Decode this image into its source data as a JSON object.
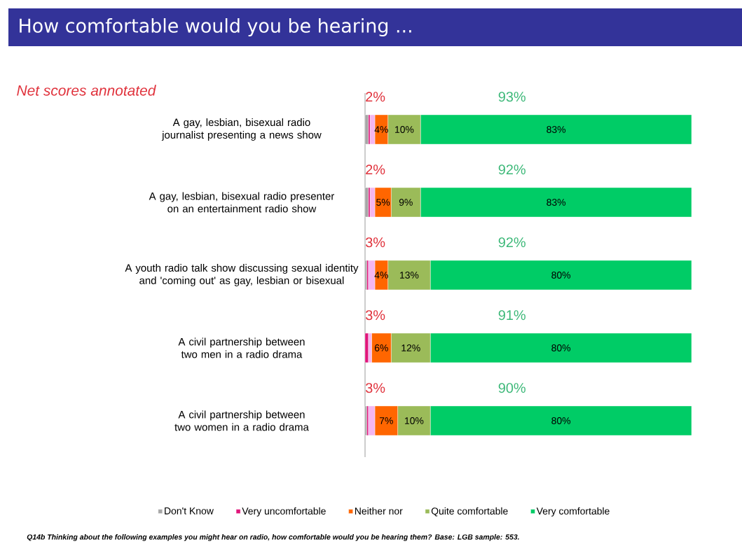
{
  "chart_data": {
    "type": "bar",
    "orientation": "horizontal",
    "stacked": true,
    "title": "How comfortable would you be hearing ...",
    "subtitle": "Net scores annotated",
    "categories": [
      "A gay, lesbian, bisexual radio journalist presenting a news show",
      "A gay, lesbian, bisexual radio presenter on an entertainment radio show",
      "A youth radio talk show discussing sexual identity and 'coming out' as gay, lesbian or bisexual",
      "A civil partnership between two men in a radio drama",
      "A civil partnership between two women in a radio drama"
    ],
    "series": [
      {
        "name": "Don't Know",
        "color": "#a6a6a6",
        "values": [
          1,
          1,
          0.5,
          0,
          0.5
        ]
      },
      {
        "name": "Very uncomfortable",
        "color": "#e0157a",
        "values": [
          0.5,
          0.5,
          0.5,
          1,
          0.5
        ]
      },
      {
        "color": "#f4b6f0",
        "values": [
          1.5,
          1.5,
          2,
          1,
          2
        ]
      },
      {
        "name": "Neither nor",
        "color": "#ff6600",
        "values": [
          4,
          5,
          4,
          6,
          7
        ],
        "value_labels": [
          "4%",
          "5%",
          "4%",
          "6%",
          "7%"
        ]
      },
      {
        "name": "Quite comfortable",
        "color": "#9bbb59",
        "values": [
          10,
          9,
          13,
          12,
          10
        ],
        "value_labels": [
          "10%",
          "9%",
          "13%",
          "12%",
          "10%"
        ]
      },
      {
        "name": "Very comfortable",
        "color": "#00cc66",
        "values": [
          83,
          83,
          80,
          80,
          80
        ],
        "value_labels": [
          "83%",
          "83%",
          "80%",
          "80%",
          "80%"
        ]
      }
    ],
    "xlim": [
      0,
      100
    ],
    "tick_labels": "y",
    "legend": "bottom",
    "annotations": [
      "Q14b Thinking about the following examples you might hear on radio, how comfortable would you be hearing them? Base: LGB sample: 553.",
      "2%",
      "93%",
      "2%",
      "92%",
      "3%",
      "92%",
      "3%",
      "91%",
      "3%",
      "90%"
    ]
  }
}
